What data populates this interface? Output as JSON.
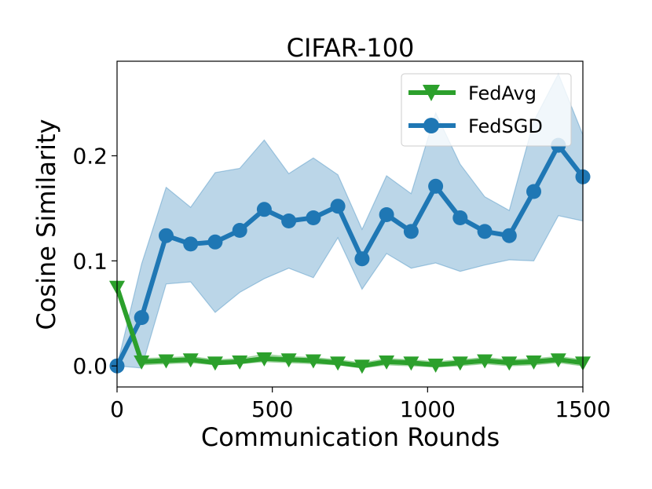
{
  "chart_data": {
    "type": "line",
    "title": "CIFAR-100",
    "xlabel": "Communication Rounds",
    "ylabel": "Cosine Similarity",
    "xlim": [
      0,
      1500
    ],
    "ylim": [
      -0.02,
      0.29
    ],
    "xticks": [
      0,
      500,
      1000,
      1500
    ],
    "xtick_labels": [
      "0",
      "500",
      "1000",
      "1500"
    ],
    "yticks": [
      0.0,
      0.1,
      0.2
    ],
    "ytick_labels": [
      "0.0",
      "0.1",
      "0.2"
    ],
    "grid": false,
    "legend_position": "top-right",
    "series": [
      {
        "name": "FedAvg",
        "color": "#2ca02c",
        "marker": "triangle-down",
        "x": [
          0,
          79,
          158,
          237,
          316,
          395,
          474,
          553,
          632,
          711,
          789,
          868,
          947,
          1026,
          1105,
          1184,
          1263,
          1342,
          1421,
          1500
        ],
        "y": [
          0.075,
          0.004,
          0.005,
          0.006,
          0.003,
          0.004,
          0.007,
          0.006,
          0.005,
          0.003,
          0.0,
          0.004,
          0.003,
          0.001,
          0.003,
          0.005,
          0.003,
          0.004,
          0.006,
          0.003
        ],
        "lower": [
          0.07,
          0.001,
          0.002,
          0.003,
          0.001,
          0.002,
          0.004,
          0.003,
          0.002,
          0.001,
          -0.002,
          0.001,
          0.0,
          -0.001,
          0.0,
          0.002,
          0.0,
          0.001,
          0.003,
          0.0
        ],
        "upper": [
          0.08,
          0.007,
          0.008,
          0.009,
          0.006,
          0.007,
          0.011,
          0.009,
          0.008,
          0.006,
          0.003,
          0.007,
          0.006,
          0.004,
          0.006,
          0.008,
          0.006,
          0.007,
          0.009,
          0.006
        ]
      },
      {
        "name": "FedSGD",
        "color": "#1f77b4",
        "marker": "circle",
        "x": [
          0,
          79,
          158,
          237,
          316,
          395,
          474,
          553,
          632,
          711,
          789,
          868,
          947,
          1026,
          1105,
          1184,
          1263,
          1342,
          1421,
          1500
        ],
        "y": [
          0.0,
          0.046,
          0.124,
          0.116,
          0.118,
          0.129,
          0.149,
          0.138,
          0.141,
          0.152,
          0.102,
          0.144,
          0.128,
          0.171,
          0.141,
          0.128,
          0.124,
          0.166,
          0.21,
          0.18
        ],
        "lower": [
          0.0,
          -0.002,
          0.078,
          0.08,
          0.051,
          0.07,
          0.083,
          0.093,
          0.084,
          0.122,
          0.073,
          0.107,
          0.093,
          0.098,
          0.09,
          0.096,
          0.101,
          0.1,
          0.143,
          0.138
        ],
        "upper": [
          0.0,
          0.097,
          0.17,
          0.151,
          0.184,
          0.188,
          0.215,
          0.183,
          0.198,
          0.182,
          0.13,
          0.181,
          0.164,
          0.241,
          0.192,
          0.161,
          0.148,
          0.233,
          0.278,
          0.22
        ]
      }
    ]
  }
}
